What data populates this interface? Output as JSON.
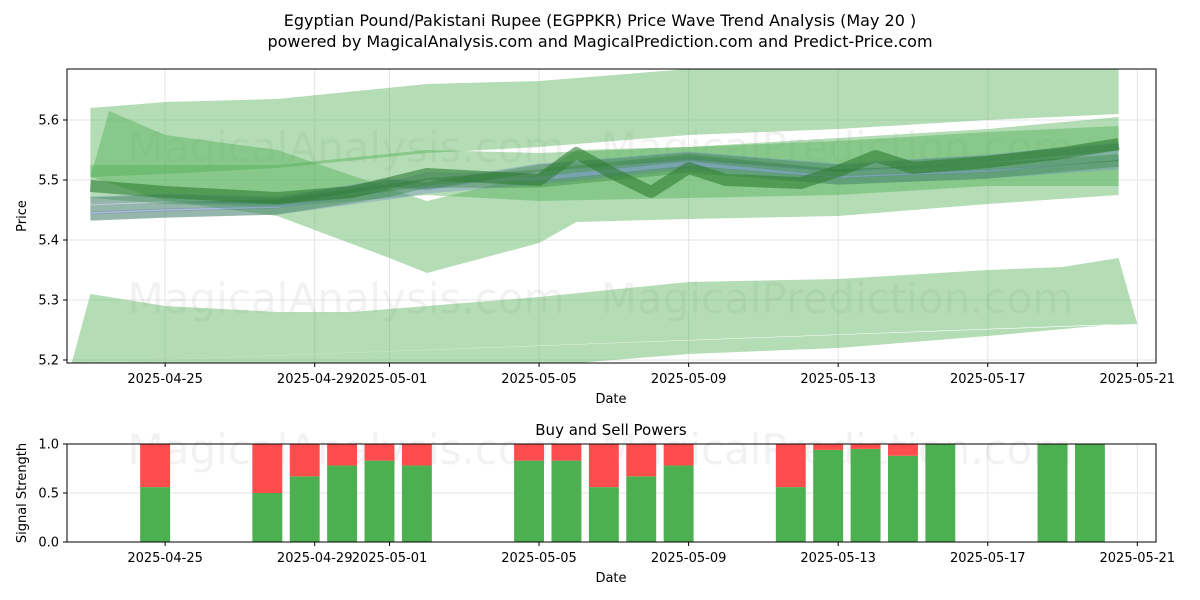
{
  "title_line1": "Egyptian Pound/Pakistani Rupee (EGPPKR) Price Wave Trend Analysis (May 20 )",
  "title_line2": "powered by MagicalAnalysis.com and MagicalPrediction.com and Predict-Price.com",
  "watermarks": [
    "MagicalAnalysis.com",
    "MagicalPrediction.com"
  ],
  "colors": {
    "band": "#4caf50",
    "median": "#2e7d32",
    "wave": "#6f88c8",
    "buy": "#4caf50",
    "sell": "#ff4c4c",
    "grid": "#e5e5e5"
  },
  "chart_data": [
    {
      "type": "area",
      "xlabel": "Date",
      "ylabel": "Price",
      "x_ticks": [
        "2025-04-25",
        "2025-04-29",
        "2025-05-01",
        "2025-05-05",
        "2025-05-09",
        "2025-05-13",
        "2025-05-17",
        "2025-05-21"
      ],
      "y_ticks": [
        "5.2",
        "5.3",
        "5.4",
        "5.5",
        "5.6"
      ],
      "xlim": [
        "2025-04-22T09:00",
        "2025-05-21T12:00"
      ],
      "ylim": [
        5.195,
        5.685
      ],
      "grid": true,
      "bands": [
        {
          "upper": [
            [
              "2025-04-23",
              5.62
            ],
            [
              "2025-04-25",
              5.63
            ],
            [
              "2025-04-28",
              5.635
            ],
            [
              "2025-05-02",
              5.66
            ],
            [
              "2025-05-05",
              5.665
            ],
            [
              "2025-05-09",
              5.685
            ],
            [
              "2025-05-13",
              5.69
            ],
            [
              "2025-05-17",
              5.685
            ],
            [
              "2025-05-20T12:00",
              5.685
            ]
          ],
          "lower": [
            [
              "2025-04-23",
              5.505
            ],
            [
              "2025-04-25",
              5.51
            ],
            [
              "2025-04-28",
              5.52
            ],
            [
              "2025-05-02",
              5.545
            ],
            [
              "2025-05-05",
              5.555
            ],
            [
              "2025-05-09",
              5.575
            ],
            [
              "2025-05-13",
              5.585
            ],
            [
              "2025-05-17",
              5.6
            ],
            [
              "2025-05-20T12:00",
              5.61
            ]
          ]
        },
        {
          "upper": [
            [
              "2025-04-23",
              5.505
            ],
            [
              "2025-04-23T12:00",
              5.615
            ],
            [
              "2025-04-25",
              5.575
            ],
            [
              "2025-04-28",
              5.55
            ],
            [
              "2025-05-02",
              5.465
            ],
            [
              "2025-05-05",
              5.51
            ],
            [
              "2025-05-06",
              5.55
            ],
            [
              "2025-05-09",
              5.555
            ],
            [
              "2025-05-13",
              5.565
            ],
            [
              "2025-05-17",
              5.58
            ],
            [
              "2025-05-20T12:00",
              5.59
            ]
          ],
          "lower": [
            [
              "2025-04-23",
              5.505
            ],
            [
              "2025-04-25",
              5.465
            ],
            [
              "2025-04-28",
              5.44
            ],
            [
              "2025-05-01",
              5.37
            ],
            [
              "2025-05-02",
              5.345
            ],
            [
              "2025-05-05",
              5.395
            ],
            [
              "2025-05-06",
              5.43
            ],
            [
              "2025-05-09",
              5.435
            ],
            [
              "2025-05-13",
              5.44
            ],
            [
              "2025-05-17",
              5.46
            ],
            [
              "2025-05-20T12:00",
              5.475
            ]
          ]
        },
        {
          "upper": [
            [
              "2025-04-23",
              5.525
            ],
            [
              "2025-04-25",
              5.525
            ],
            [
              "2025-04-28",
              5.525
            ],
            [
              "2025-05-02",
              5.55
            ],
            [
              "2025-05-05",
              5.545
            ],
            [
              "2025-05-09",
              5.555
            ],
            [
              "2025-05-13",
              5.57
            ],
            [
              "2025-05-17",
              5.585
            ],
            [
              "2025-05-20T12:00",
              5.605
            ]
          ],
          "lower": [
            [
              "2025-04-23",
              5.47
            ],
            [
              "2025-04-25",
              5.46
            ],
            [
              "2025-04-28",
              5.455
            ],
            [
              "2025-05-02",
              5.475
            ],
            [
              "2025-05-05",
              5.465
            ],
            [
              "2025-05-09",
              5.47
            ],
            [
              "2025-05-13",
              5.475
            ],
            [
              "2025-05-17",
              5.49
            ],
            [
              "2025-05-20T12:00",
              5.49
            ]
          ]
        },
        {
          "upper": [
            [
              "2025-04-22T12:00",
              5.195
            ],
            [
              "2025-04-23",
              5.31
            ],
            [
              "2025-04-25",
              5.29
            ],
            [
              "2025-04-28",
              5.28
            ],
            [
              "2025-04-30",
              5.28
            ],
            [
              "2025-05-02",
              5.29
            ],
            [
              "2025-05-05",
              5.305
            ],
            [
              "2025-05-09",
              5.33
            ],
            [
              "2025-05-13",
              5.335
            ],
            [
              "2025-05-17",
              5.35
            ],
            [
              "2025-05-19",
              5.355
            ],
            [
              "2025-05-20T12:00",
              5.37
            ],
            [
              "2025-05-21",
              5.26
            ]
          ],
          "lower": [
            [
              "2025-05-20T12:00",
              5.26
            ],
            [
              "2025-05-17",
              5.24
            ],
            [
              "2025-05-13",
              5.22
            ],
            [
              "2025-05-09",
              5.21
            ],
            [
              "2025-05-05",
              5.19
            ],
            [
              "2025-04-28",
              5.19
            ],
            [
              "2025-04-23",
              5.19
            ],
            [
              "2025-04-22T12:00",
              5.195
            ]
          ]
        }
      ],
      "median": [
        [
          "2025-04-23",
          5.49
        ],
        [
          "2025-04-25",
          5.48
        ],
        [
          "2025-04-28",
          5.47
        ],
        [
          "2025-04-30",
          5.48
        ],
        [
          "2025-05-02",
          5.51
        ],
        [
          "2025-05-05",
          5.5
        ],
        [
          "2025-05-06",
          5.545
        ],
        [
          "2025-05-07",
          5.51
        ],
        [
          "2025-05-08",
          5.48
        ],
        [
          "2025-05-09",
          5.52
        ],
        [
          "2025-05-10",
          5.5
        ],
        [
          "2025-05-12",
          5.495
        ],
        [
          "2025-05-13",
          5.515
        ],
        [
          "2025-05-14",
          5.54
        ],
        [
          "2025-05-15",
          5.52
        ],
        [
          "2025-05-17",
          5.53
        ],
        [
          "2025-05-19",
          5.545
        ],
        [
          "2025-05-20T12:00",
          5.56
        ]
      ],
      "waves": [
        [
          [
            "2025-04-23",
            5.45
          ],
          [
            "2025-04-25",
            5.455
          ],
          [
            "2025-04-28",
            5.46
          ],
          [
            "2025-05-01",
            5.49
          ],
          [
            "2025-05-02",
            5.505
          ],
          [
            "2025-05-05",
            5.505
          ],
          [
            "2025-05-09",
            5.53
          ],
          [
            "2025-05-13",
            5.51
          ],
          [
            "2025-05-17",
            5.52
          ],
          [
            "2025-05-20T12:00",
            5.54
          ]
        ],
        [
          [
            "2025-04-23",
            5.465
          ],
          [
            "2025-04-25",
            5.47
          ],
          [
            "2025-04-28",
            5.465
          ],
          [
            "2025-05-01",
            5.495
          ],
          [
            "2025-05-02",
            5.49
          ],
          [
            "2025-05-05",
            5.52
          ],
          [
            "2025-05-09",
            5.54
          ],
          [
            "2025-05-13",
            5.52
          ],
          [
            "2025-05-17",
            5.535
          ],
          [
            "2025-05-20T12:00",
            5.555
          ]
        ],
        [
          [
            "2025-04-23",
            5.44
          ],
          [
            "2025-04-25",
            5.445
          ],
          [
            "2025-04-28",
            5.45
          ],
          [
            "2025-05-01",
            5.475
          ],
          [
            "2025-05-02",
            5.485
          ],
          [
            "2025-05-05",
            5.5
          ],
          [
            "2025-05-09",
            5.525
          ],
          [
            "2025-05-13",
            5.5
          ],
          [
            "2025-05-17",
            5.51
          ],
          [
            "2025-05-20T12:00",
            5.525
          ]
        ]
      ]
    },
    {
      "type": "bar",
      "title": "Buy and Sell Powers",
      "xlabel": "Date",
      "ylabel": "Signal Strength",
      "x_ticks": [
        "2025-04-25",
        "2025-04-29",
        "2025-05-01",
        "2025-05-05",
        "2025-05-09",
        "2025-05-13",
        "2025-05-17",
        "2025-05-21"
      ],
      "y_ticks": [
        "0.0",
        "0.5",
        "1.0"
      ],
      "ylim": [
        0,
        1
      ],
      "grid": true,
      "series": [
        {
          "name": "Buy",
          "values": [
            0.56,
            0.5,
            0.67,
            0.78,
            0.83,
            0.78,
            0.83,
            0.83,
            0.56,
            0.67,
            0.78,
            0.56,
            0.94,
            0.95,
            0.88,
            1.0,
            1.0,
            1.0
          ]
        },
        {
          "name": "Sell",
          "values": [
            0.44,
            0.5,
            0.33,
            0.22,
            0.17,
            0.22,
            0.17,
            0.17,
            0.44,
            0.33,
            0.22,
            0.44,
            0.06,
            0.05,
            0.12,
            0.0,
            0.0,
            0.0
          ]
        }
      ],
      "dates": [
        "2025-04-25",
        "2025-04-28",
        "2025-04-29",
        "2025-04-30",
        "2025-05-01",
        "2025-05-02",
        "2025-05-05",
        "2025-05-06",
        "2025-05-07",
        "2025-05-08",
        "2025-05-09",
        "2025-05-12",
        "2025-05-13",
        "2025-05-14",
        "2025-05-15",
        "2025-05-16",
        "2025-05-19",
        "2025-05-20"
      ]
    }
  ]
}
